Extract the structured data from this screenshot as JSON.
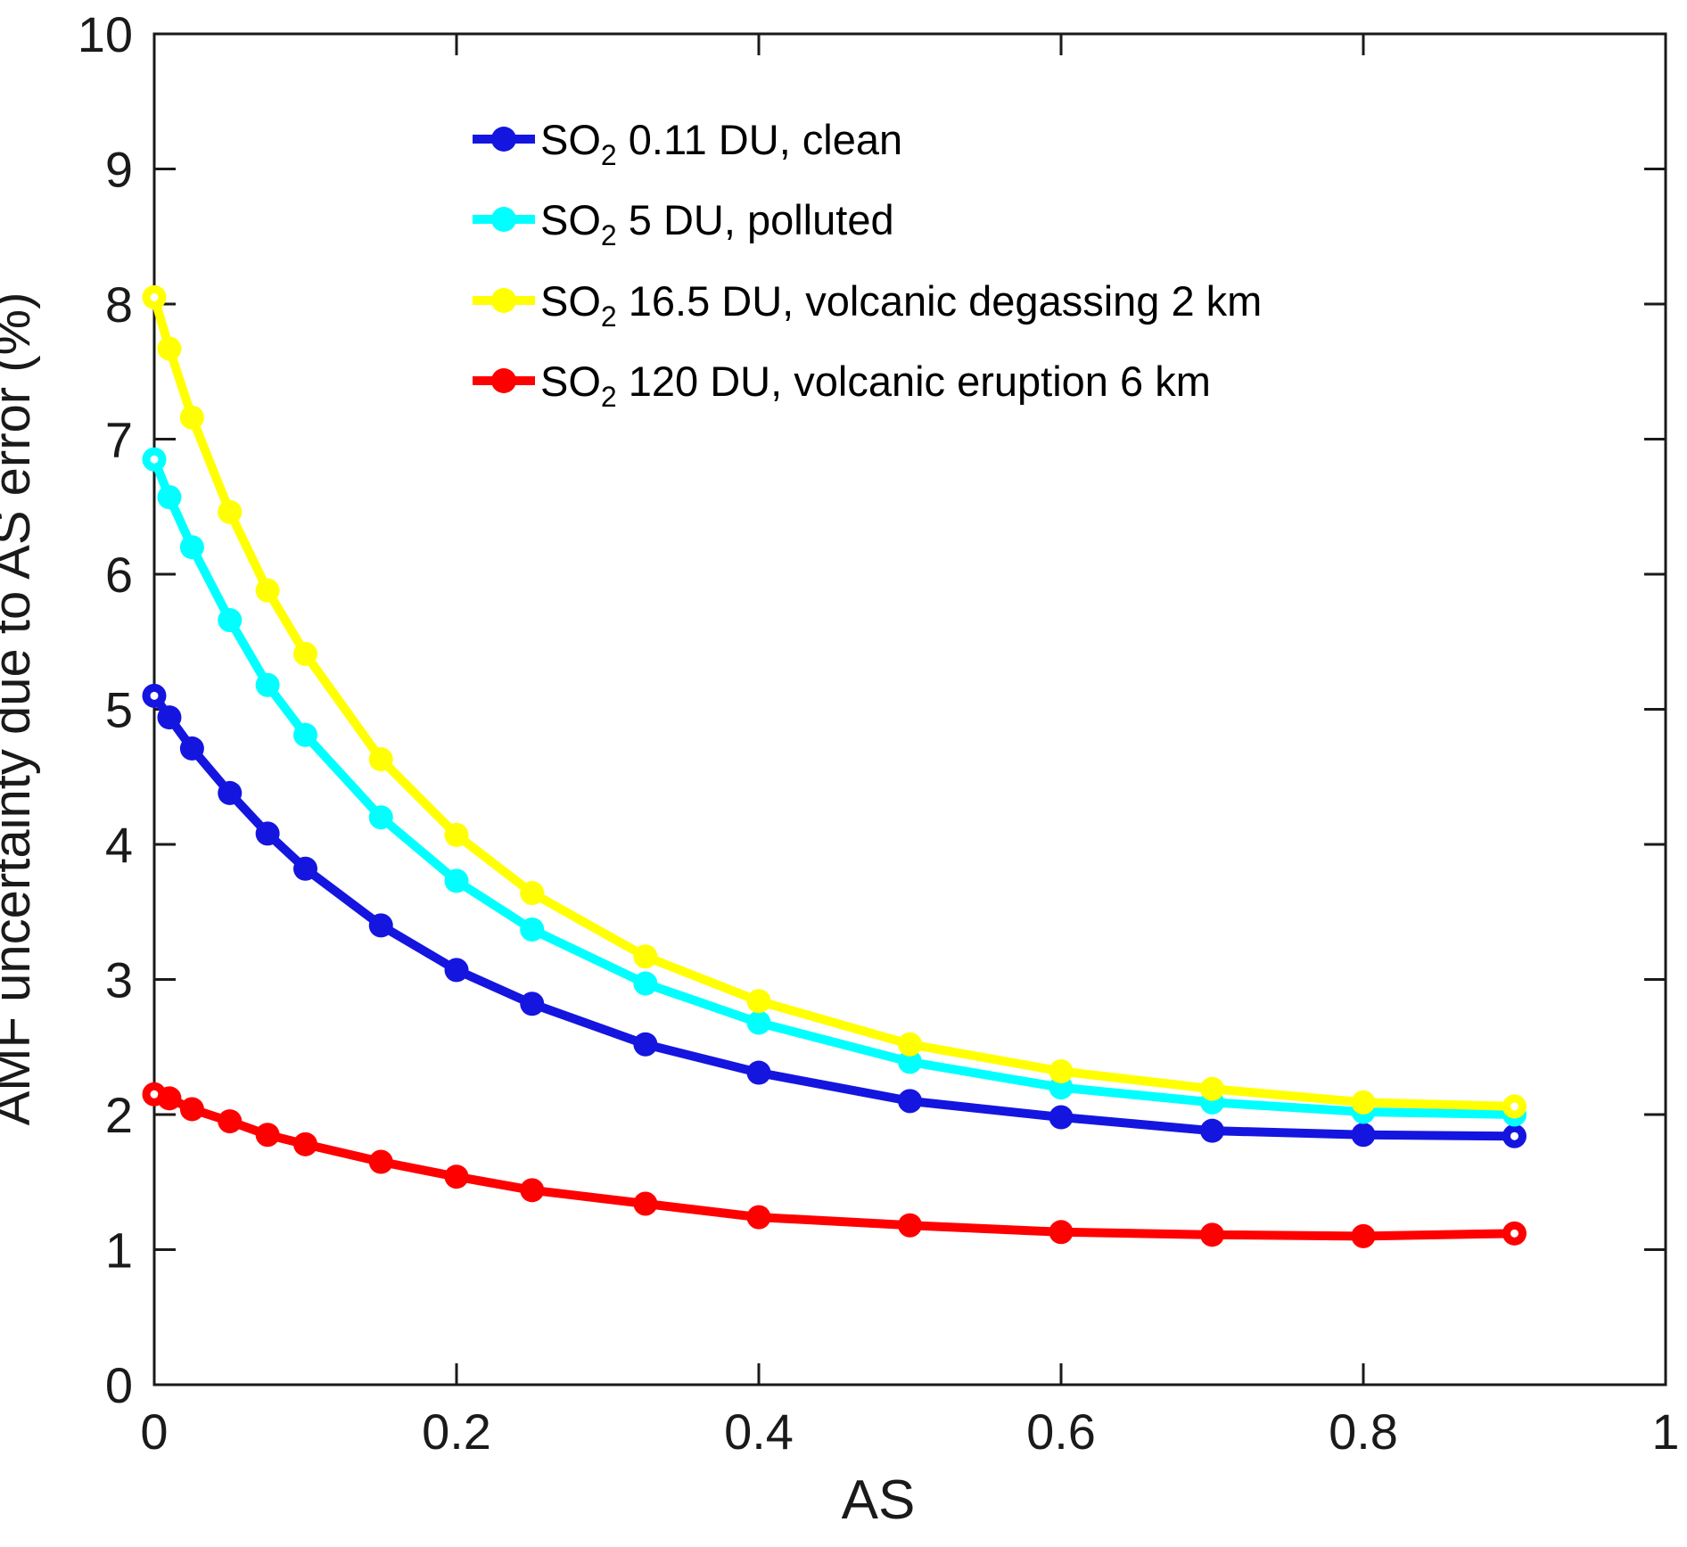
{
  "figure": {
    "background": "#FFFFFF",
    "axis_color": "#1A1A1A"
  },
  "chart_data": {
    "type": "line",
    "title": "",
    "xlabel": "AS",
    "ylabel": "AMF uncertainty due to AS error (%)",
    "xlim": [
      0,
      1
    ],
    "ylim": [
      0,
      10
    ],
    "grid": false,
    "legend_position": "upper-left-inside",
    "x_ticks": [
      "0",
      "0.2",
      "0.4",
      "0.6",
      "0.8",
      "1"
    ],
    "x_tick_values": [
      0,
      0.2,
      0.4,
      0.6,
      0.8,
      1
    ],
    "y_ticks": [
      "0",
      "1",
      "2",
      "3",
      "4",
      "5",
      "6",
      "7",
      "8",
      "9",
      "10"
    ],
    "y_tick_values": [
      0,
      1,
      2,
      3,
      4,
      5,
      6,
      7,
      8,
      9,
      10
    ],
    "x": [
      0,
      0.01,
      0.025,
      0.05,
      0.075,
      0.1,
      0.15,
      0.2,
      0.25,
      0.325,
      0.4,
      0.5,
      0.6,
      0.7,
      0.8,
      0.9
    ],
    "series": [
      {
        "name": "so2-011-du-clean",
        "label_base": "SO",
        "label_sub": "2",
        "label_rest": " 0.11 DU, clean",
        "color": "#1515E0",
        "values": [
          5.1,
          4.94,
          4.71,
          4.38,
          4.08,
          3.82,
          3.4,
          3.07,
          2.82,
          2.52,
          2.31,
          2.1,
          1.98,
          1.88,
          1.85,
          1.84
        ]
      },
      {
        "name": "so2-5-du-polluted",
        "label_base": "SO",
        "label_sub": "2",
        "label_rest": " 5 DU, polluted",
        "color": "#00FFFF",
        "values": [
          6.85,
          6.57,
          6.2,
          5.66,
          5.18,
          4.81,
          4.2,
          3.73,
          3.37,
          2.97,
          2.68,
          2.39,
          2.2,
          2.09,
          2.02,
          2.0
        ]
      },
      {
        "name": "so2-165-du-volcanic-degassing-2km",
        "label_base": "SO",
        "label_sub": "2",
        "label_rest": " 16.5 DU, volcanic degassing 2 km",
        "color": "#FFFF00",
        "values": [
          8.05,
          7.67,
          7.16,
          6.46,
          5.88,
          5.41,
          4.63,
          4.07,
          3.64,
          3.17,
          2.84,
          2.52,
          2.32,
          2.19,
          2.09,
          2.06
        ]
      },
      {
        "name": "so2-120-du-volcanic-eruption-6km",
        "label_base": "SO",
        "label_sub": "2",
        "label_rest": " 120 DU, volcanic eruption 6 km",
        "color": "#FF0000",
        "values": [
          2.15,
          2.12,
          2.04,
          1.95,
          1.85,
          1.78,
          1.65,
          1.54,
          1.44,
          1.34,
          1.24,
          1.18,
          1.13,
          1.11,
          1.1,
          1.12
        ]
      }
    ]
  }
}
